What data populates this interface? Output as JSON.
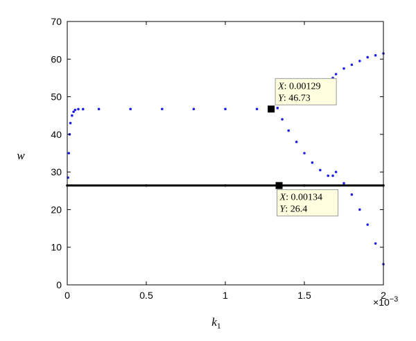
{
  "chart_data": {
    "type": "scatter",
    "xlabel": "k",
    "xlabel_subscript": "1",
    "ylabel": "w",
    "xlim": [
      0,
      0.002
    ],
    "ylim": [
      0,
      70
    ],
    "x_ticks": [
      0,
      0.0005,
      0.001,
      0.0015,
      0.002
    ],
    "x_tick_labels": [
      "0",
      "0.5",
      "1",
      "1.5",
      "2"
    ],
    "x_multiplier_label": "×10",
    "x_multiplier_exponent": "−3",
    "y_ticks": [
      0,
      10,
      20,
      30,
      40,
      50,
      60,
      70
    ],
    "y_tick_labels": [
      "0",
      "10",
      "20",
      "30",
      "40",
      "50",
      "60",
      "70"
    ],
    "grid": false,
    "series_colors": {
      "blue": "#1f1fe6",
      "black": "#000000"
    },
    "series": [
      {
        "color": "blue",
        "description": "bifurcation points",
        "x": [
          5e-06,
          1e-05,
          1.5e-05,
          2e-05,
          3e-05,
          4e-05,
          5e-05,
          7e-05,
          0.0001,
          0.0002,
          0.0004,
          0.0006,
          0.0008,
          0.001,
          0.0012,
          0.00129,
          0.00133,
          0.00136,
          0.0014,
          0.00145,
          0.0015,
          0.00155,
          0.0016,
          0.00165,
          0.00168,
          0.0017,
          0.00175,
          0.0018,
          0.00185,
          0.0019,
          0.00195,
          0.002
        ],
        "y": [
          28.5,
          35,
          40,
          43,
          45,
          46,
          46.5,
          46.7,
          46.7,
          46.73,
          46.73,
          46.73,
          46.73,
          46.73,
          46.73,
          46.73,
          47,
          44,
          41,
          38,
          35,
          32.5,
          30.5,
          29,
          55,
          56,
          57.5,
          58.5,
          59.5,
          60.5,
          61,
          61.5
        ]
      },
      {
        "color": "blue",
        "description": "lower branch",
        "x": [
          0.00168,
          0.0017,
          0.00175,
          0.0018,
          0.00185,
          0.0019,
          0.00195,
          0.002
        ],
        "y": [
          29,
          30,
          27,
          24,
          20,
          16,
          11,
          5.5
        ]
      },
      {
        "color": "black",
        "description": "equilibrium line",
        "x": [
          0,
          0.0005,
          0.001,
          0.00134,
          0.0015,
          0.002
        ],
        "y": [
          26.4,
          26.4,
          26.4,
          26.4,
          26.4,
          26.4
        ]
      }
    ],
    "annotations": [
      {
        "x": 0.00129,
        "y": 46.73,
        "x_label": "X",
        "x_value": ": 0.00129",
        "y_label": "Y",
        "y_value": ": 46.73"
      },
      {
        "x": 0.00134,
        "y": 26.4,
        "x_label": "X",
        "x_value": ": 0.00134",
        "y_label": "Y",
        "y_value": ": 26.4"
      }
    ]
  }
}
